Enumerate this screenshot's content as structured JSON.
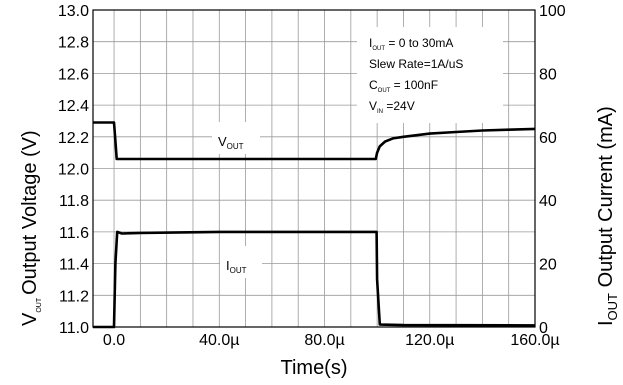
{
  "chart_data": {
    "type": "line",
    "xlabel": "Time(s)",
    "ylabel_left": {
      "main": "Output Voltage (V)",
      "prefix": "V",
      "sub": "OUT"
    },
    "ylabel_right": {
      "prefix": "I",
      "sub": "OUT",
      "main": " Output Current (mA)"
    },
    "x_ticks": [
      "0.0",
      "40.0µ",
      "80.0µ",
      "120.0µ",
      "160.0µ"
    ],
    "x_tick_values": [
      0,
      40,
      80,
      120,
      160
    ],
    "xlim": [
      -8,
      160
    ],
    "y_left_ticks": [
      "11.0",
      "11.2",
      "11.4",
      "11.6",
      "11.8",
      "12.0",
      "12.2",
      "12.4",
      "12.6",
      "12.8",
      "13.0"
    ],
    "ylim_left": [
      11.0,
      13.0
    ],
    "y_right_ticks": [
      "0",
      "20",
      "40",
      "60",
      "80",
      "100"
    ],
    "ylim_right": [
      0,
      100
    ],
    "grid": true,
    "annotations": [
      {
        "prefix": "I",
        "sub": "OUT",
        "rest": " = 0 to 30mA"
      },
      {
        "prefix": "",
        "sub": "",
        "rest": "Slew Rate=1A/uS"
      },
      {
        "prefix": "C",
        "sub": "OUT",
        "rest": " = 100nF"
      },
      {
        "prefix": "V",
        "sub": "IN",
        "rest": " =24V"
      }
    ],
    "series": [
      {
        "name": "VOUT",
        "label_prefix": "V",
        "label_sub": "OUT",
        "axis": "left",
        "x": [
          -8,
          0,
          0.4,
          1,
          5,
          20,
          40,
          60,
          80,
          99.5,
          100,
          101,
          103,
          106,
          110,
          120,
          130,
          140,
          150,
          160
        ],
        "y": [
          12.29,
          12.29,
          12.2,
          12.06,
          12.06,
          12.06,
          12.06,
          12.06,
          12.06,
          12.06,
          12.1,
          12.14,
          12.17,
          12.19,
          12.2,
          12.22,
          12.23,
          12.24,
          12.245,
          12.25
        ]
      },
      {
        "name": "IOUT",
        "label_prefix": "I",
        "label_sub": "OUT",
        "axis": "right",
        "x": [
          -8,
          0,
          0.5,
          1.2,
          3,
          10,
          40,
          80,
          99.8,
          100,
          101,
          110,
          160
        ],
        "y": [
          0,
          0,
          20,
          30,
          29.5,
          29.7,
          30,
          30,
          30,
          15,
          0.8,
          0.6,
          0.5
        ]
      }
    ]
  }
}
